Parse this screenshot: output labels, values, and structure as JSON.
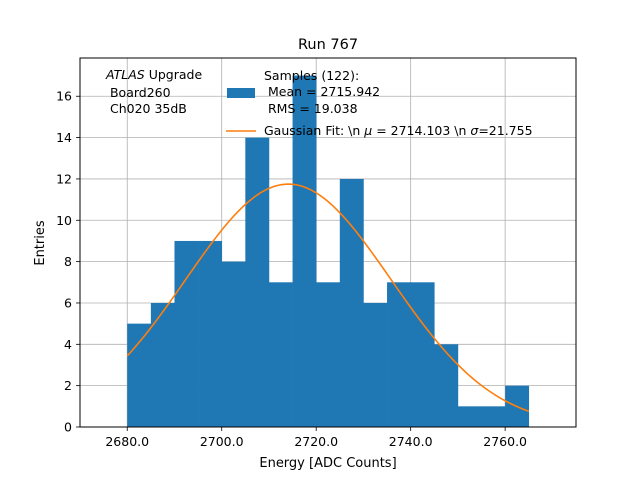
{
  "chart_data": {
    "type": "bar",
    "title": "Run 767",
    "xlabel": "Energy [ADC Counts]",
    "ylabel": "Entries",
    "xlim": [
      2670,
      2775
    ],
    "ylim": [
      0,
      17.85
    ],
    "grid": true,
    "xticks": [
      2680,
      2700,
      2720,
      2740,
      2760
    ],
    "xtick_labels": [
      "2680.0",
      "2700.0",
      "2720.0",
      "2740.0",
      "2760.0"
    ],
    "yticks": [
      0,
      2,
      4,
      6,
      8,
      10,
      12,
      14,
      16
    ],
    "bin_width": 5,
    "bins": [
      {
        "x": 2680,
        "count": 5
      },
      {
        "x": 2685,
        "count": 6
      },
      {
        "x": 2690,
        "count": 9
      },
      {
        "x": 2695,
        "count": 9
      },
      {
        "x": 2700,
        "count": 8
      },
      {
        "x": 2705,
        "count": 14
      },
      {
        "x": 2710,
        "count": 7
      },
      {
        "x": 2715,
        "count": 17
      },
      {
        "x": 2720,
        "count": 7
      },
      {
        "x": 2725,
        "count": 12
      },
      {
        "x": 2730,
        "count": 6
      },
      {
        "x": 2735,
        "count": 7
      },
      {
        "x": 2740,
        "count": 7
      },
      {
        "x": 2745,
        "count": 4
      },
      {
        "x": 2750,
        "count": 1
      },
      {
        "x": 2755,
        "count": 1
      },
      {
        "x": 2760,
        "count": 2
      }
    ],
    "fit": {
      "mu": 2714.103,
      "sigma": 21.755,
      "amplitude": 11.75,
      "x_start": 2680,
      "x_end": 2765
    },
    "colors": {
      "histogram": "#1f77b4",
      "fit": "#ff7f0e",
      "grid": "#b0b0b0"
    },
    "annotation": {
      "line1_italic": "ATLAS",
      "line1_rest": " Upgrade",
      "line2": " Board260",
      "line3": " Ch020 35dB"
    },
    "legend": {
      "placement": "top-center",
      "hist_line1": "Samples (122):",
      "hist_line2": " Mean = 2715.942",
      "hist_line3": " RMS = 19.038",
      "fit_prefix": "Gaussian Fit: \\n ",
      "fit_mu_symbol": "μ",
      "fit_mid": " = 2714.103 \\n ",
      "fit_sigma_symbol": "σ",
      "fit_suffix": "=21.755"
    }
  }
}
